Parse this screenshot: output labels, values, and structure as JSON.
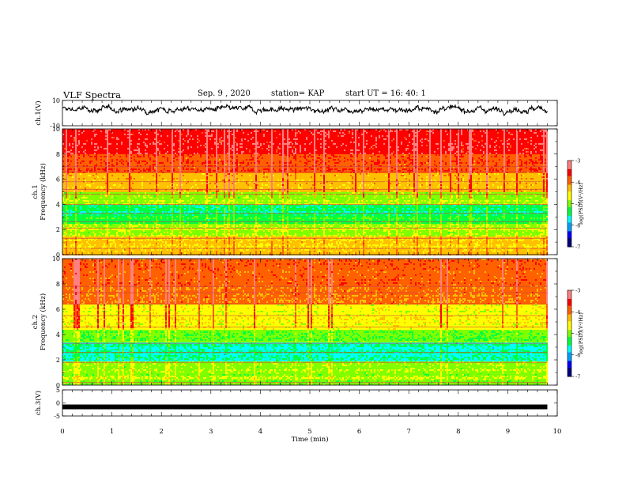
{
  "header": {
    "title": "VLF Spectra",
    "date": "Sep. 9 , 2020",
    "station": "station= KAP",
    "start": "start UT = 16: 40: 1"
  },
  "colors": {
    "colormap": [
      "#00007f",
      "#0000ff",
      "#00a0ff",
      "#00ffff",
      "#00ff40",
      "#80ff00",
      "#ffff00",
      "#ffc000",
      "#ff6000",
      "#ff0000",
      "#ff8080",
      "#ffffff"
    ],
    "trace": "#000000"
  },
  "chart_data": [
    {
      "type": "line",
      "ylabel": "ch.1(V)",
      "ylim": [
        -10,
        10
      ],
      "y_ticklabels": [
        "10",
        "-10"
      ],
      "xlim": [
        0,
        10
      ],
      "series": [
        {
          "x_range": [
            0,
            9.8
          ],
          "description_values": "noisy waveform oscillating around +3 V",
          "mean": 3,
          "amplitude_typical": 4,
          "y_min_approx": -6,
          "y_max_approx": 10
        }
      ]
    },
    {
      "type": "heatmap",
      "ylabel": "ch.1\nFrequency (kHz)",
      "ylim": [
        0,
        10
      ],
      "y_ticklabels": [
        "0",
        "2",
        "4",
        "6",
        "8",
        "10"
      ],
      "xlim": [
        0,
        10
      ],
      "x_range": [
        0,
        9.8
      ],
      "colorbar": {
        "label": "log(PSD)(V²/Hz)",
        "range": [
          -7,
          -3
        ],
        "ticklabels": [
          "-3",
          "-4",
          "-5",
          "-6",
          "-7"
        ]
      },
      "band_levels_log_psd": [
        {
          "f": [
            0.0,
            0.5
          ],
          "level": -4.3
        },
        {
          "f": [
            0.5,
            1.5
          ],
          "level": -4.4
        },
        {
          "f": [
            1.5,
            2.5
          ],
          "level": -4.9
        },
        {
          "f": [
            2.5,
            3.2
          ],
          "level": -5.3
        },
        {
          "f": [
            3.2,
            4.0
          ],
          "level": -5.5
        },
        {
          "f": [
            4.0,
            5.0
          ],
          "level": -4.9
        },
        {
          "f": [
            5.0,
            6.5
          ],
          "level": -4.3
        },
        {
          "f": [
            6.5,
            8.0
          ],
          "level": -3.8
        },
        {
          "f": [
            8.0,
            10.0
          ],
          "level": -3.5
        }
      ],
      "horizontal_lines_khz": [
        0.5,
        1.3,
        2.1,
        2.6,
        3.3,
        4.0,
        4.8,
        5.2,
        5.8,
        6.6,
        7.0
      ]
    },
    {
      "type": "heatmap",
      "ylabel": "ch.2\nFrequency (kHz)",
      "ylim": [
        0,
        10
      ],
      "y_ticklabels": [
        "0",
        "2",
        "4",
        "6",
        "8",
        "10"
      ],
      "xlim": [
        0,
        10
      ],
      "x_range": [
        0,
        9.8
      ],
      "colorbar": {
        "label": "log(PSD)(V²/Hz)",
        "range": [
          -7,
          -3
        ],
        "ticklabels": [
          "-3",
          "-4",
          "-5",
          "-6",
          "-7"
        ]
      },
      "band_levels_log_psd": [
        {
          "f": [
            0.0,
            0.5
          ],
          "level": -5.0
        },
        {
          "f": [
            0.5,
            2.0
          ],
          "level": -4.9
        },
        {
          "f": [
            2.0,
            3.5
          ],
          "level": -5.6
        },
        {
          "f": [
            3.5,
            4.5
          ],
          "level": -5.1
        },
        {
          "f": [
            4.5,
            6.5
          ],
          "level": -4.6
        },
        {
          "f": [
            6.5,
            8.0
          ],
          "level": -4.0
        },
        {
          "f": [
            8.0,
            10.0
          ],
          "level": -3.9
        }
      ],
      "horizontal_lines_khz": [
        0.2,
        1.8,
        2.6,
        3.3,
        4.6,
        5.5,
        6.4,
        7.3,
        7.8
      ]
    },
    {
      "type": "line",
      "ylabel": "ch.3(V)",
      "ylim": [
        -5,
        5
      ],
      "y_ticklabels": [
        "5",
        "0",
        "-5"
      ],
      "xlim": [
        0,
        10
      ],
      "xlabel": "Time (min)",
      "x_ticklabels": [
        "0",
        "1",
        "2",
        "3",
        "4",
        "5",
        "6",
        "7",
        "8",
        "9",
        "10"
      ],
      "series": [
        {
          "x_range": [
            0,
            9.8
          ],
          "constant_value": -1.5
        }
      ]
    }
  ]
}
